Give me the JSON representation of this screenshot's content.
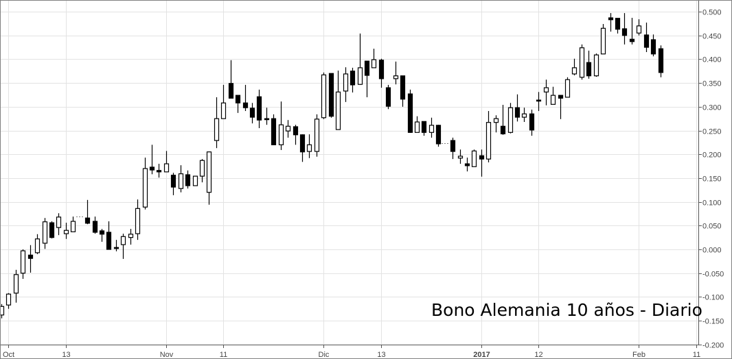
{
  "chart_data": {
    "type": "candlestick",
    "title": "Bono Alemania 10 años - Diario",
    "xlabel": "",
    "ylabel": "",
    "ylim": [
      -0.2,
      0.52
    ],
    "y_ticks": [
      "0.500",
      "0.450",
      "0.400",
      "0.350",
      "0.300",
      "0.250",
      "0.200",
      "0.150",
      "0.100",
      "0.050",
      "0.000",
      "-0.050",
      "-0.100",
      "-0.150",
      "-0.200"
    ],
    "x_ticks": [
      {
        "label": "Oct",
        "index": 1
      },
      {
        "label": "13",
        "index": 9
      },
      {
        "label": "Nov",
        "index": 23
      },
      {
        "label": "11",
        "index": 31
      },
      {
        "label": "Dic",
        "index": 45
      },
      {
        "label": "13",
        "index": 53
      },
      {
        "label": "2017",
        "index": 67,
        "bold": true
      },
      {
        "label": "12",
        "index": 75
      },
      {
        "label": "Feb",
        "index": 89
      },
      {
        "label": "11",
        "index": 97
      }
    ],
    "grid": true,
    "up_color": "#ffffff",
    "down_color": "#000000",
    "ohlc_columns": [
      "open",
      "high",
      "low",
      "close"
    ],
    "candles": [
      [
        -0.138,
        -0.115,
        -0.145,
        -0.12
      ],
      [
        -0.117,
        -0.092,
        -0.125,
        -0.094
      ],
      [
        -0.092,
        -0.043,
        -0.112,
        -0.053
      ],
      [
        -0.05,
        0.0,
        -0.062,
        -0.003
      ],
      [
        -0.012,
        0.009,
        -0.049,
        -0.019
      ],
      [
        -0.007,
        0.032,
        -0.01,
        0.022
      ],
      [
        0.013,
        0.066,
        0.001,
        0.058
      ],
      [
        0.056,
        0.059,
        0.023,
        0.025
      ],
      [
        0.046,
        0.076,
        0.03,
        0.068
      ],
      [
        0.033,
        0.056,
        0.022,
        0.04
      ],
      [
        0.037,
        0.069,
        0.037,
        0.059
      ],
      [
        0.069,
        0.069,
        0.069,
        0.069
      ],
      [
        0.066,
        0.104,
        0.053,
        0.055
      ],
      [
        0.059,
        0.069,
        0.033,
        0.036
      ],
      [
        0.039,
        0.043,
        0.016,
        0.032
      ],
      [
        0.036,
        0.059,
        0.0,
        0.0
      ],
      [
        0.004,
        0.02,
        -0.004,
        0.003
      ],
      [
        0.01,
        0.033,
        -0.02,
        0.027
      ],
      [
        0.025,
        0.043,
        0.01,
        0.032
      ],
      [
        0.033,
        0.105,
        0.02,
        0.086
      ],
      [
        0.089,
        0.193,
        0.084,
        0.17
      ],
      [
        0.173,
        0.22,
        0.158,
        0.167
      ],
      [
        0.166,
        0.18,
        0.151,
        0.163
      ],
      [
        0.163,
        0.207,
        0.163,
        0.18
      ],
      [
        0.156,
        0.161,
        0.114,
        0.131
      ],
      [
        0.128,
        0.177,
        0.12,
        0.159
      ],
      [
        0.157,
        0.166,
        0.128,
        0.134
      ],
      [
        0.134,
        0.154,
        0.134,
        0.154
      ],
      [
        0.154,
        0.19,
        0.141,
        0.187
      ],
      [
        0.12,
        0.206,
        0.094,
        0.205
      ],
      [
        0.229,
        0.32,
        0.213,
        0.275
      ],
      [
        0.275,
        0.346,
        0.275,
        0.308
      ],
      [
        0.349,
        0.398,
        0.318,
        0.318
      ],
      [
        0.324,
        0.324,
        0.287,
        0.308
      ],
      [
        0.308,
        0.346,
        0.291,
        0.298
      ],
      [
        0.297,
        0.308,
        0.265,
        0.278
      ],
      [
        0.321,
        0.336,
        0.255,
        0.272
      ],
      [
        0.275,
        0.298,
        0.262,
        0.274
      ],
      [
        0.275,
        0.284,
        0.22,
        0.22
      ],
      [
        0.22,
        0.311,
        0.209,
        0.262
      ],
      [
        0.249,
        0.272,
        0.235,
        0.259
      ],
      [
        0.258,
        0.262,
        0.22,
        0.241
      ],
      [
        0.241,
        0.242,
        0.184,
        0.205
      ],
      [
        0.206,
        0.242,
        0.192,
        0.22
      ],
      [
        0.206,
        0.284,
        0.195,
        0.274
      ],
      [
        0.277,
        0.372,
        0.274,
        0.367
      ],
      [
        0.37,
        0.37,
        0.277,
        0.28
      ],
      [
        0.252,
        0.376,
        0.252,
        0.331
      ],
      [
        0.333,
        0.383,
        0.31,
        0.369
      ],
      [
        0.375,
        0.382,
        0.33,
        0.346
      ],
      [
        0.347,
        0.454,
        0.346,
        0.382
      ],
      [
        0.396,
        0.396,
        0.32,
        0.366
      ],
      [
        0.382,
        0.422,
        0.382,
        0.399
      ],
      [
        0.398,
        0.401,
        0.34,
        0.359
      ],
      [
        0.34,
        0.346,
        0.295,
        0.301
      ],
      [
        0.359,
        0.395,
        0.347,
        0.365
      ],
      [
        0.365,
        0.365,
        0.3,
        0.316
      ],
      [
        0.327,
        0.336,
        0.245,
        0.246
      ],
      [
        0.246,
        0.28,
        0.246,
        0.268
      ],
      [
        0.269,
        0.269,
        0.239,
        0.246
      ],
      [
        0.246,
        0.277,
        0.235,
        0.261
      ],
      [
        0.261,
        0.262,
        0.216,
        0.222
      ],
      [
        0.223,
        0.223,
        0.223,
        0.223
      ],
      [
        0.229,
        0.235,
        0.19,
        0.206
      ],
      [
        0.192,
        0.21,
        0.18,
        0.196
      ],
      [
        0.18,
        0.193,
        0.164,
        0.176
      ],
      [
        0.174,
        0.21,
        0.174,
        0.207
      ],
      [
        0.197,
        0.21,
        0.153,
        0.19
      ],
      [
        0.19,
        0.291,
        0.183,
        0.267
      ],
      [
        0.267,
        0.282,
        0.246,
        0.275
      ],
      [
        0.259,
        0.304,
        0.241,
        0.243
      ],
      [
        0.246,
        0.308,
        0.244,
        0.298
      ],
      [
        0.298,
        0.326,
        0.269,
        0.278
      ],
      [
        0.278,
        0.298,
        0.268,
        0.285
      ],
      [
        0.285,
        0.294,
        0.239,
        0.251
      ],
      [
        0.314,
        0.331,
        0.291,
        0.313
      ],
      [
        0.331,
        0.357,
        0.303,
        0.34
      ],
      [
        0.305,
        0.342,
        0.305,
        0.324
      ],
      [
        0.324,
        0.324,
        0.274,
        0.318
      ],
      [
        0.32,
        0.362,
        0.32,
        0.357
      ],
      [
        0.369,
        0.401,
        0.366,
        0.382
      ],
      [
        0.362,
        0.431,
        0.357,
        0.424
      ],
      [
        0.393,
        0.418,
        0.359,
        0.365
      ],
      [
        0.365,
        0.412,
        0.363,
        0.409
      ],
      [
        0.411,
        0.474,
        0.411,
        0.465
      ],
      [
        0.487,
        0.497,
        0.458,
        0.483
      ],
      [
        0.486,
        0.486,
        0.454,
        0.463
      ],
      [
        0.464,
        0.497,
        0.431,
        0.45
      ],
      [
        0.442,
        0.487,
        0.431,
        0.437
      ],
      [
        0.455,
        0.484,
        0.45,
        0.47
      ],
      [
        0.451,
        0.477,
        0.415,
        0.425
      ],
      [
        0.441,
        0.452,
        0.406,
        0.411
      ],
      [
        0.422,
        0.429,
        0.362,
        0.372
      ]
    ]
  }
}
